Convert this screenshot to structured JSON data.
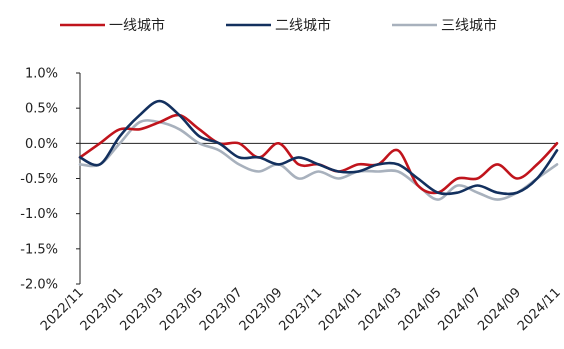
{
  "chart_data": {
    "type": "line",
    "title": "",
    "xlabel": "",
    "ylabel": "",
    "ylim": [
      -2.0,
      1.0
    ],
    "y_ticks": [
      "1.0%",
      "0.5%",
      "0.0%",
      "-0.5%",
      "-1.0%",
      "-1.5%",
      "-2.0%"
    ],
    "y_tick_values": [
      1.0,
      0.5,
      0.0,
      -0.5,
      -1.0,
      -1.5,
      -2.0
    ],
    "x_tick_labels": [
      "2022/11",
      "2023/01",
      "2023/03",
      "2023/05",
      "2023/07",
      "2023/09",
      "2023/11",
      "2024/01",
      "2024/03",
      "2024/05",
      "2024/07",
      "2024/09",
      "2024/11"
    ],
    "categories": [
      "2022/11",
      "2022/12",
      "2023/01",
      "2023/02",
      "2023/03",
      "2023/04",
      "2023/05",
      "2023/06",
      "2023/07",
      "2023/08",
      "2023/09",
      "2023/10",
      "2023/11",
      "2023/12",
      "2024/01",
      "2024/02",
      "2024/03",
      "2024/04",
      "2024/05",
      "2024/06",
      "2024/07",
      "2024/08",
      "2024/09",
      "2024/10",
      "2024/11"
    ],
    "legend_position": "top",
    "grid": false,
    "series": [
      {
        "name": "一线城市",
        "color": "#c0141c",
        "values": [
          -0.2,
          0.0,
          0.2,
          0.2,
          0.3,
          0.4,
          0.2,
          0.0,
          0.0,
          -0.2,
          0.0,
          -0.3,
          -0.3,
          -0.4,
          -0.3,
          -0.3,
          -0.1,
          -0.6,
          -0.7,
          -0.5,
          -0.5,
          -0.3,
          -0.5,
          -0.3,
          0.0
        ]
      },
      {
        "name": "二线城市",
        "color": "#13305e",
        "values": [
          -0.2,
          -0.3,
          0.1,
          0.4,
          0.6,
          0.4,
          0.1,
          0.0,
          -0.2,
          -0.2,
          -0.3,
          -0.2,
          -0.3,
          -0.4,
          -0.4,
          -0.3,
          -0.3,
          -0.5,
          -0.7,
          -0.7,
          -0.6,
          -0.7,
          -0.7,
          -0.5,
          -0.1
        ]
      },
      {
        "name": "三线城市",
        "color": "#a8b1bd",
        "values": [
          -0.3,
          -0.3,
          0.0,
          0.3,
          0.3,
          0.2,
          0.0,
          -0.1,
          -0.3,
          -0.4,
          -0.3,
          -0.5,
          -0.4,
          -0.5,
          -0.4,
          -0.4,
          -0.4,
          -0.6,
          -0.8,
          -0.6,
          -0.7,
          -0.8,
          -0.7,
          -0.5,
          -0.3
        ]
      }
    ]
  }
}
